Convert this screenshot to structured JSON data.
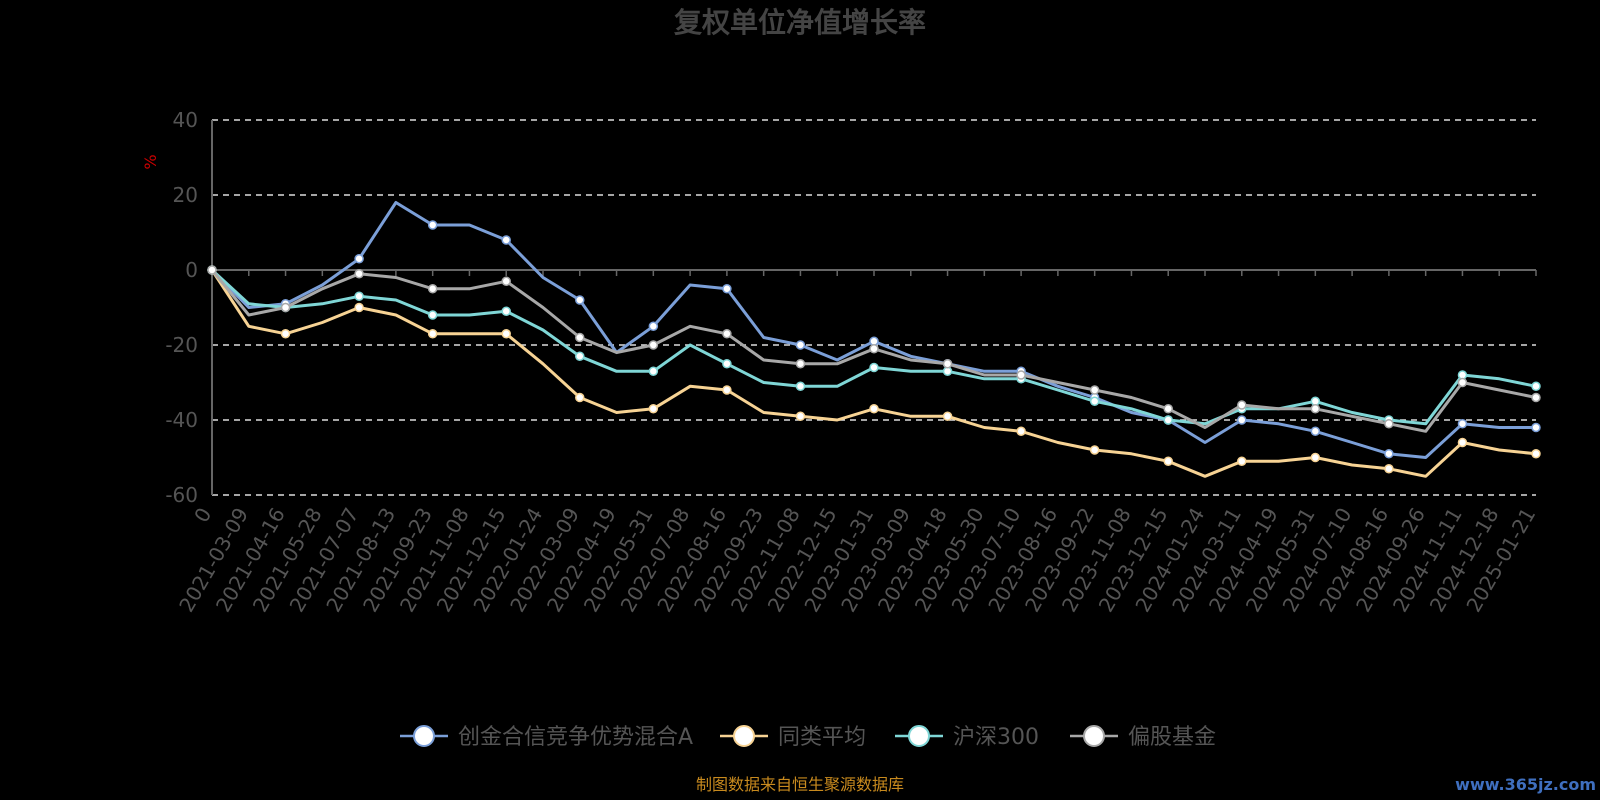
{
  "chart_data": {
    "type": "line",
    "title": "复权单位净值增长率",
    "ylabel": "%",
    "ylim": [
      -60,
      40
    ],
    "yticks": [
      40,
      20,
      0,
      -20,
      -40,
      -60
    ],
    "grid": "horizontal-dashed",
    "legend_position": "bottom-center",
    "x": [
      "0",
      "2021-03-09",
      "2021-04-16",
      "2021-05-28",
      "2021-07-07",
      "2021-08-13",
      "2021-09-23",
      "2021-11-08",
      "2021-12-15",
      "2022-01-24",
      "2022-03-09",
      "2022-04-19",
      "2022-05-31",
      "2022-07-08",
      "2022-08-16",
      "2022-09-23",
      "2022-11-08",
      "2022-12-15",
      "2023-01-31",
      "2023-03-09",
      "2023-04-18",
      "2023-05-30",
      "2023-07-10",
      "2023-08-16",
      "2023-09-22",
      "2023-11-08",
      "2023-12-15",
      "2024-01-24",
      "2024-03-11",
      "2024-04-19",
      "2024-05-31",
      "2024-07-10",
      "2024-08-16",
      "2024-09-26",
      "2024-11-11",
      "2024-12-18",
      "2025-01-21"
    ],
    "series": [
      {
        "name": "创金合信竞争优势混合A",
        "color": "#7b9fd8",
        "values": [
          0,
          -10,
          -9,
          -4,
          3,
          18,
          12,
          12,
          8,
          -2,
          -8,
          -22,
          -15,
          -4,
          -5,
          -18,
          -20,
          -24,
          -19,
          -23,
          -25,
          -27,
          -27,
          -31,
          -34,
          -38,
          -40,
          -46,
          -40,
          -41,
          -43,
          -46,
          -49,
          -50,
          -41,
          -42,
          -42
        ]
      },
      {
        "name": "同类平均",
        "color": "#f7d394",
        "values": [
          0,
          -15,
          -17,
          -14,
          -10,
          -12,
          -17,
          -17,
          -17,
          -25,
          -34,
          -38,
          -37,
          -31,
          -32,
          -38,
          -39,
          -40,
          -37,
          -39,
          -39,
          -42,
          -43,
          -46,
          -48,
          -49,
          -51,
          -55,
          -51,
          -51,
          -50,
          -52,
          -53,
          -55,
          -46,
          -48,
          -49
        ]
      },
      {
        "name": "沪深300",
        "color": "#7fd6d6",
        "values": [
          0,
          -9,
          -10,
          -9,
          -7,
          -8,
          -12,
          -12,
          -11,
          -16,
          -23,
          -27,
          -27,
          -20,
          -25,
          -30,
          -31,
          -31,
          -26,
          -27,
          -27,
          -29,
          -29,
          -32,
          -35,
          -37,
          -40,
          -41,
          -37,
          -37,
          -35,
          -38,
          -40,
          -41,
          -28,
          -29,
          -31
        ]
      },
      {
        "name": "偏股基金",
        "color": "#a8a8a8",
        "values": [
          0,
          -12,
          -10,
          -5,
          -1,
          -2,
          -5,
          -5,
          -3,
          -10,
          -18,
          -22,
          -20,
          -15,
          -17,
          -24,
          -25,
          -25,
          -21,
          -24,
          -25,
          -28,
          -28,
          -30,
          -32,
          -34,
          -37,
          -42,
          -36,
          -37,
          -37,
          -39,
          -41,
          -43,
          -30,
          -32,
          -34
        ]
      }
    ]
  },
  "legend_items": [
    "创金合信竞争优势混合A",
    "同类平均",
    "沪深300",
    "偏股基金"
  ],
  "source_text": "制图数据来自恒生聚源数据库",
  "watermark_text": "www.365jz.com"
}
